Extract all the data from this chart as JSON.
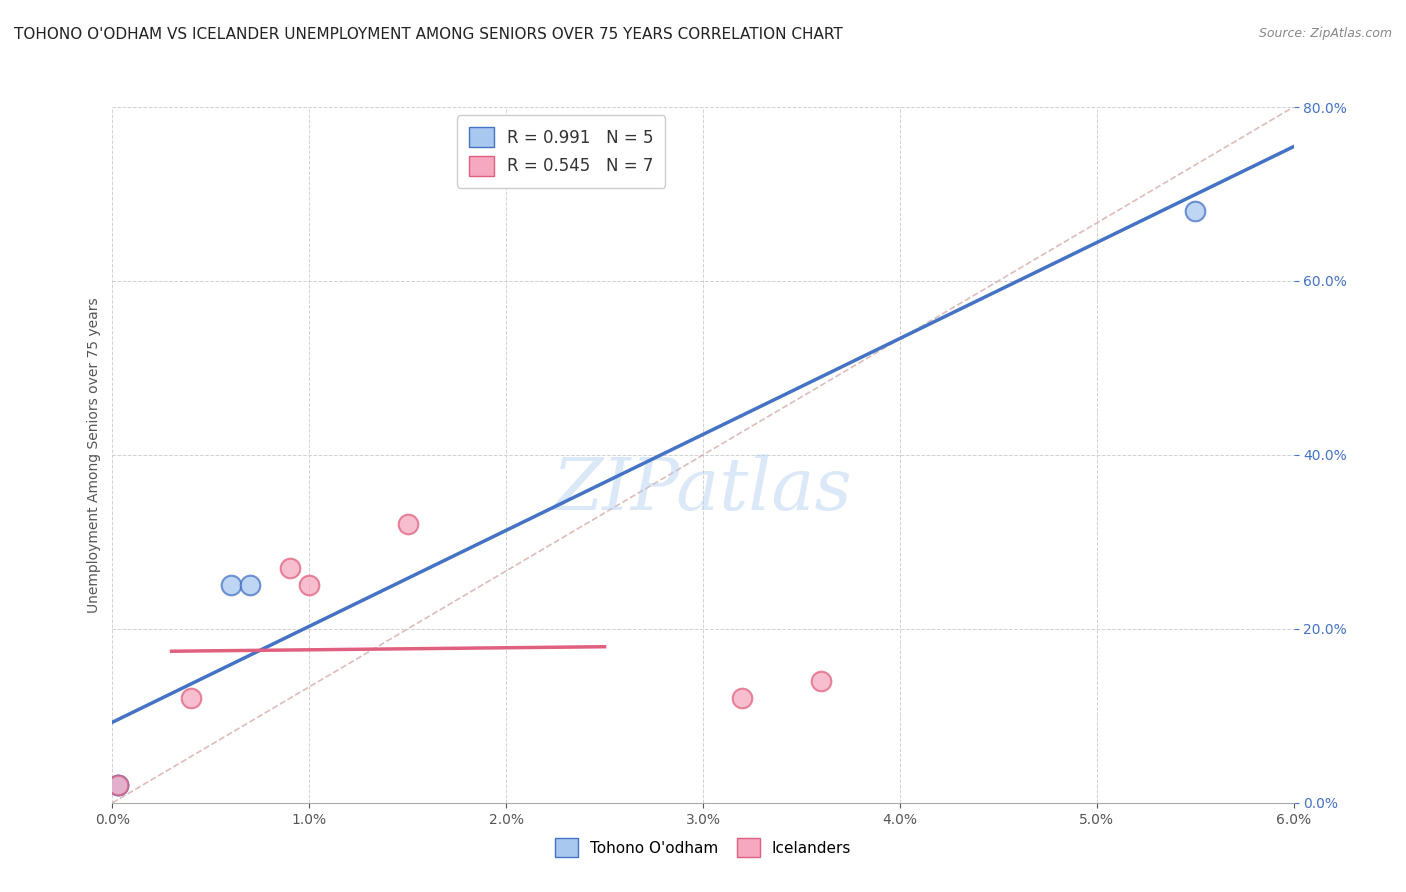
{
  "title": "TOHONO O'ODHAM VS ICELANDER UNEMPLOYMENT AMONG SENIORS OVER 75 YEARS CORRELATION CHART",
  "source": "Source: ZipAtlas.com",
  "xlabel": "",
  "ylabel": "Unemployment Among Seniors over 75 years",
  "xlim": [
    0,
    0.06
  ],
  "ylim": [
    0,
    0.8
  ],
  "xticks": [
    0.0,
    0.01,
    0.02,
    0.03,
    0.04,
    0.05,
    0.06
  ],
  "yticks": [
    0.0,
    0.2,
    0.4,
    0.6,
    0.8
  ],
  "blue_points_x": [
    0.0003,
    0.0003,
    0.006,
    0.007,
    0.055
  ],
  "blue_points_y": [
    0.02,
    0.02,
    0.25,
    0.25,
    0.68
  ],
  "pink_points_x": [
    0.0003,
    0.004,
    0.009,
    0.01,
    0.015,
    0.032,
    0.036
  ],
  "pink_points_y": [
    0.02,
    0.12,
    0.27,
    0.25,
    0.32,
    0.12,
    0.14
  ],
  "blue_color": "#A8C8F0",
  "pink_color": "#F5A8C0",
  "blue_line_color": "#4472C4",
  "pink_line_color": "#E06080",
  "blue_R": 0.991,
  "blue_N": 5,
  "pink_R": 0.545,
  "pink_N": 7,
  "legend_label_blue": "Tohono O'odham",
  "legend_label_pink": "Icelanders",
  "watermark": "ZIPatlas",
  "title_fontsize": 11,
  "source_fontsize": 9,
  "diag_color": "#D0A0A0",
  "grid_color": "#CCCCCC",
  "yaxis_color": "#4472C4",
  "ylabel_color": "#555555"
}
